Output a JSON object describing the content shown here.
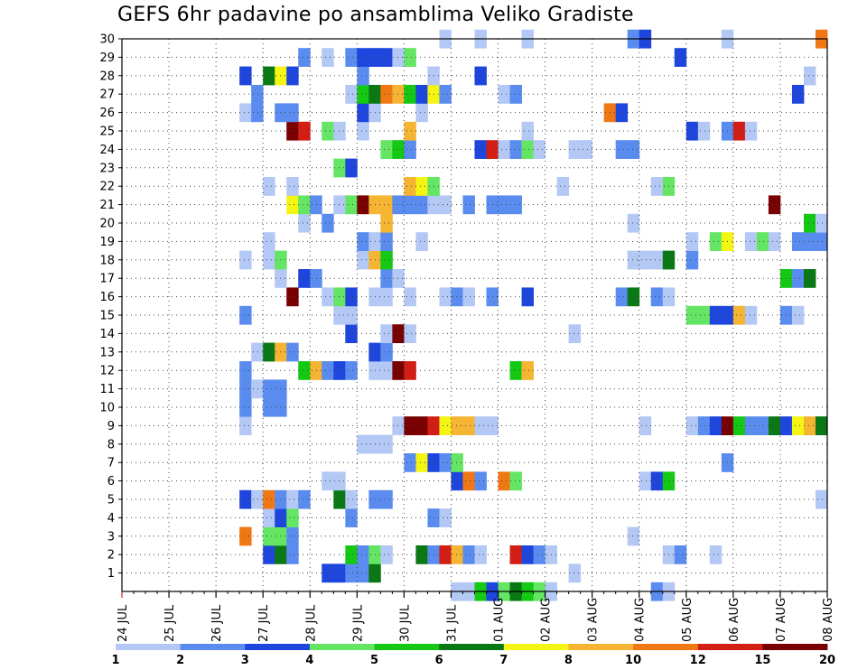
{
  "title": "GEFS 6hr padavine po ansamblima Veliko Gradiste",
  "chart_data": {
    "type": "heatmap",
    "title": "GEFS 6hr padavine po ansamblima Veliko Gradiste",
    "x_tick_labels": [
      "24 JUL",
      "25 JUL",
      "26 JUL",
      "27 JUL",
      "28 JUL",
      "29 JUL",
      "30 JUL",
      "31 JUL",
      "01 AUG",
      "02 AUG",
      "03 AUG",
      "04 AUG",
      "05 AUG",
      "06 AUG",
      "07 AUG",
      "08 AUG"
    ],
    "y_tick_labels": [
      "1",
      "2",
      "3",
      "4",
      "5",
      "6",
      "7",
      "8",
      "9",
      "10",
      "11",
      "12",
      "13",
      "14",
      "15",
      "16",
      "17",
      "18",
      "19",
      "20",
      "21",
      "22",
      "23",
      "24",
      "25",
      "26",
      "27",
      "28",
      "29",
      "30"
    ],
    "xlim": [
      0,
      60
    ],
    "ylim": [
      0,
      30
    ],
    "steps_per_day": 4,
    "grid": true,
    "colorbar": {
      "labels": [
        "1",
        "2",
        "3",
        "4",
        "5",
        "6",
        "7",
        "8",
        "10",
        "12",
        "15",
        "20"
      ],
      "colors": [
        "#b4c8f5",
        "#5a8cf0",
        "#1e46dc",
        "#64e664",
        "#14c814",
        "#0a7814",
        "#f5f514",
        "#f5b432",
        "#f07814",
        "#d21e14",
        "#780000"
      ]
    },
    "cells": [
      [
        28,
        0,
        1
      ],
      [
        29,
        0,
        1
      ],
      [
        30,
        0,
        5
      ],
      [
        31,
        0,
        3
      ],
      [
        32,
        0,
        4
      ],
      [
        33,
        0,
        6
      ],
      [
        34,
        0,
        5
      ],
      [
        35,
        0,
        4
      ],
      [
        36,
        0,
        1
      ],
      [
        45,
        0,
        2
      ],
      [
        46,
        0,
        1
      ],
      [
        17,
        1,
        3
      ],
      [
        18,
        1,
        3
      ],
      [
        19,
        1,
        2
      ],
      [
        20,
        1,
        2
      ],
      [
        21,
        1,
        6
      ],
      [
        38,
        1,
        1
      ],
      [
        12,
        2,
        3
      ],
      [
        13,
        2,
        6
      ],
      [
        14,
        2,
        2
      ],
      [
        19,
        2,
        5
      ],
      [
        20,
        2,
        2
      ],
      [
        21,
        2,
        4
      ],
      [
        22,
        2,
        1
      ],
      [
        25,
        2,
        6
      ],
      [
        26,
        2,
        2
      ],
      [
        27,
        2,
        10
      ],
      [
        28,
        2,
        8
      ],
      [
        29,
        2,
        2
      ],
      [
        30,
        2,
        1
      ],
      [
        33,
        2,
        10
      ],
      [
        34,
        2,
        3
      ],
      [
        35,
        2,
        2
      ],
      [
        36,
        2,
        1
      ],
      [
        46,
        2,
        1
      ],
      [
        47,
        2,
        2
      ],
      [
        50,
        2,
        1
      ],
      [
        10,
        3,
        9
      ],
      [
        12,
        3,
        4
      ],
      [
        13,
        3,
        4
      ],
      [
        14,
        3,
        2
      ],
      [
        43,
        3,
        1
      ],
      [
        12,
        4,
        1
      ],
      [
        13,
        4,
        3
      ],
      [
        14,
        4,
        4
      ],
      [
        19,
        4,
        2
      ],
      [
        26,
        4,
        2
      ],
      [
        27,
        4,
        1
      ],
      [
        10,
        5,
        3
      ],
      [
        11,
        5,
        1
      ],
      [
        12,
        5,
        9
      ],
      [
        13,
        5,
        2
      ],
      [
        14,
        5,
        1
      ],
      [
        15,
        5,
        2
      ],
      [
        18,
        5,
        6
      ],
      [
        19,
        5,
        1
      ],
      [
        21,
        5,
        2
      ],
      [
        22,
        5,
        2
      ],
      [
        59,
        5,
        1
      ],
      [
        17,
        6,
        1
      ],
      [
        18,
        6,
        1
      ],
      [
        28,
        6,
        3
      ],
      [
        29,
        6,
        9
      ],
      [
        30,
        6,
        2
      ],
      [
        32,
        6,
        9
      ],
      [
        33,
        6,
        4
      ],
      [
        44,
        6,
        1
      ],
      [
        45,
        6,
        3
      ],
      [
        46,
        6,
        5
      ],
      [
        24,
        7,
        2
      ],
      [
        25,
        7,
        7
      ],
      [
        26,
        7,
        3
      ],
      [
        27,
        7,
        2
      ],
      [
        28,
        7,
        4
      ],
      [
        51,
        7,
        2
      ],
      [
        20,
        8,
        1
      ],
      [
        21,
        8,
        1
      ],
      [
        22,
        8,
        1
      ],
      [
        10,
        9,
        1
      ],
      [
        23,
        9,
        1
      ],
      [
        24,
        9,
        11
      ],
      [
        25,
        9,
        11
      ],
      [
        26,
        9,
        10
      ],
      [
        27,
        9,
        7
      ],
      [
        28,
        9,
        8
      ],
      [
        29,
        9,
        8
      ],
      [
        30,
        9,
        1
      ],
      [
        31,
        9,
        1
      ],
      [
        44,
        9,
        1
      ],
      [
        48,
        9,
        1
      ],
      [
        49,
        9,
        2
      ],
      [
        50,
        9,
        3
      ],
      [
        51,
        9,
        11
      ],
      [
        52,
        9,
        5
      ],
      [
        53,
        9,
        2
      ],
      [
        54,
        9,
        2
      ],
      [
        55,
        9,
        6
      ],
      [
        56,
        9,
        3
      ],
      [
        57,
        9,
        7
      ],
      [
        58,
        9,
        8
      ],
      [
        59,
        9,
        6
      ],
      [
        10,
        10,
        2
      ],
      [
        12,
        10,
        2
      ],
      [
        13,
        10,
        2
      ],
      [
        10,
        11,
        2
      ],
      [
        11,
        11,
        1
      ],
      [
        12,
        11,
        2
      ],
      [
        13,
        11,
        2
      ],
      [
        10,
        12,
        2
      ],
      [
        15,
        12,
        5
      ],
      [
        16,
        12,
        8
      ],
      [
        17,
        12,
        2
      ],
      [
        18,
        12,
        3
      ],
      [
        19,
        12,
        2
      ],
      [
        21,
        12,
        1
      ],
      [
        22,
        12,
        1
      ],
      [
        23,
        12,
        11
      ],
      [
        24,
        12,
        10
      ],
      [
        33,
        12,
        5
      ],
      [
        34,
        12,
        8
      ],
      [
        11,
        13,
        1
      ],
      [
        12,
        13,
        6
      ],
      [
        13,
        13,
        8
      ],
      [
        14,
        13,
        2
      ],
      [
        21,
        13,
        3
      ],
      [
        22,
        13,
        2
      ],
      [
        19,
        14,
        3
      ],
      [
        22,
        14,
        1
      ],
      [
        23,
        14,
        11
      ],
      [
        24,
        14,
        1
      ],
      [
        38,
        14,
        1
      ],
      [
        10,
        15,
        2
      ],
      [
        18,
        15,
        1
      ],
      [
        19,
        15,
        1
      ],
      [
        48,
        15,
        4
      ],
      [
        49,
        15,
        4
      ],
      [
        50,
        15,
        3
      ],
      [
        51,
        15,
        3
      ],
      [
        52,
        15,
        8
      ],
      [
        53,
        15,
        1
      ],
      [
        56,
        15,
        2
      ],
      [
        57,
        15,
        1
      ],
      [
        14,
        16,
        11
      ],
      [
        17,
        16,
        1
      ],
      [
        18,
        16,
        4
      ],
      [
        19,
        16,
        3
      ],
      [
        21,
        16,
        1
      ],
      [
        22,
        16,
        1
      ],
      [
        24,
        16,
        1
      ],
      [
        27,
        16,
        1
      ],
      [
        28,
        16,
        2
      ],
      [
        29,
        16,
        1
      ],
      [
        31,
        16,
        2
      ],
      [
        34,
        16,
        3
      ],
      [
        42,
        16,
        2
      ],
      [
        43,
        16,
        6
      ],
      [
        45,
        16,
        2
      ],
      [
        46,
        16,
        1
      ],
      [
        13,
        17,
        1
      ],
      [
        15,
        17,
        3
      ],
      [
        16,
        17,
        2
      ],
      [
        22,
        17,
        2
      ],
      [
        23,
        17,
        1
      ],
      [
        56,
        17,
        5
      ],
      [
        57,
        17,
        2
      ],
      [
        58,
        17,
        6
      ],
      [
        10,
        18,
        1
      ],
      [
        12,
        18,
        1
      ],
      [
        13,
        18,
        4
      ],
      [
        20,
        18,
        1
      ],
      [
        21,
        18,
        8
      ],
      [
        22,
        18,
        5
      ],
      [
        43,
        18,
        1
      ],
      [
        44,
        18,
        1
      ],
      [
        45,
        18,
        1
      ],
      [
        46,
        18,
        6
      ],
      [
        48,
        18,
        2
      ],
      [
        12,
        19,
        1
      ],
      [
        20,
        19,
        2
      ],
      [
        21,
        19,
        1
      ],
      [
        22,
        19,
        2
      ],
      [
        25,
        19,
        1
      ],
      [
        48,
        19,
        1
      ],
      [
        50,
        19,
        4
      ],
      [
        51,
        19,
        7
      ],
      [
        53,
        19,
        1
      ],
      [
        54,
        19,
        4
      ],
      [
        55,
        19,
        1
      ],
      [
        57,
        19,
        2
      ],
      [
        58,
        19,
        2
      ],
      [
        59,
        19,
        2
      ],
      [
        15,
        20,
        1
      ],
      [
        17,
        20,
        2
      ],
      [
        22,
        20,
        8
      ],
      [
        43,
        20,
        1
      ],
      [
        58,
        20,
        5
      ],
      [
        59,
        20,
        1
      ],
      [
        14,
        21,
        7
      ],
      [
        15,
        21,
        4
      ],
      [
        16,
        21,
        2
      ],
      [
        18,
        21,
        1
      ],
      [
        19,
        21,
        4
      ],
      [
        20,
        21,
        11
      ],
      [
        21,
        21,
        8
      ],
      [
        22,
        21,
        8
      ],
      [
        23,
        21,
        2
      ],
      [
        24,
        21,
        2
      ],
      [
        25,
        21,
        2
      ],
      [
        26,
        21,
        1
      ],
      [
        27,
        21,
        1
      ],
      [
        29,
        21,
        2
      ],
      [
        31,
        21,
        2
      ],
      [
        32,
        21,
        2
      ],
      [
        33,
        21,
        2
      ],
      [
        55,
        21,
        11
      ],
      [
        12,
        22,
        1
      ],
      [
        14,
        22,
        1
      ],
      [
        24,
        22,
        8
      ],
      [
        25,
        22,
        7
      ],
      [
        26,
        22,
        4
      ],
      [
        37,
        22,
        1
      ],
      [
        45,
        22,
        1
      ],
      [
        46,
        22,
        4
      ],
      [
        18,
        23,
        4
      ],
      [
        19,
        23,
        3
      ],
      [
        22,
        24,
        4
      ],
      [
        23,
        24,
        5
      ],
      [
        24,
        24,
        2
      ],
      [
        30,
        24,
        3
      ],
      [
        31,
        24,
        10
      ],
      [
        32,
        24,
        1
      ],
      [
        33,
        24,
        2
      ],
      [
        34,
        24,
        4
      ],
      [
        35,
        24,
        1
      ],
      [
        38,
        24,
        1
      ],
      [
        39,
        24,
        1
      ],
      [
        42,
        24,
        2
      ],
      [
        43,
        24,
        2
      ],
      [
        14,
        25,
        11
      ],
      [
        15,
        25,
        10
      ],
      [
        17,
        25,
        4
      ],
      [
        18,
        25,
        1
      ],
      [
        20,
        25,
        1
      ],
      [
        24,
        25,
        8
      ],
      [
        34,
        25,
        1
      ],
      [
        48,
        25,
        3
      ],
      [
        49,
        25,
        1
      ],
      [
        51,
        25,
        2
      ],
      [
        52,
        25,
        10
      ],
      [
        53,
        25,
        1
      ],
      [
        10,
        26,
        1
      ],
      [
        11,
        26,
        2
      ],
      [
        13,
        26,
        2
      ],
      [
        14,
        26,
        2
      ],
      [
        20,
        26,
        3
      ],
      [
        21,
        26,
        1
      ],
      [
        25,
        26,
        1
      ],
      [
        41,
        26,
        9
      ],
      [
        42,
        26,
        3
      ],
      [
        11,
        27,
        2
      ],
      [
        19,
        27,
        1
      ],
      [
        20,
        27,
        5
      ],
      [
        21,
        27,
        6
      ],
      [
        22,
        27,
        9
      ],
      [
        23,
        27,
        8
      ],
      [
        24,
        27,
        5
      ],
      [
        25,
        27,
        3
      ],
      [
        26,
        27,
        7
      ],
      [
        27,
        27,
        2
      ],
      [
        32,
        27,
        1
      ],
      [
        33,
        27,
        2
      ],
      [
        57,
        27,
        3
      ],
      [
        10,
        28,
        3
      ],
      [
        12,
        28,
        6
      ],
      [
        13,
        28,
        7
      ],
      [
        14,
        28,
        3
      ],
      [
        20,
        28,
        2
      ],
      [
        26,
        28,
        1
      ],
      [
        30,
        28,
        3
      ],
      [
        58,
        28,
        1
      ],
      [
        15,
        29,
        2
      ],
      [
        17,
        29,
        1
      ],
      [
        19,
        29,
        2
      ],
      [
        20,
        29,
        3
      ],
      [
        21,
        29,
        3
      ],
      [
        22,
        29,
        3
      ],
      [
        23,
        29,
        1
      ],
      [
        24,
        29,
        4
      ],
      [
        47,
        29,
        3
      ],
      [
        27,
        30,
        1
      ],
      [
        30,
        30,
        1
      ],
      [
        34,
        30,
        1
      ],
      [
        43,
        30,
        2
      ],
      [
        44,
        30,
        3
      ],
      [
        51,
        30,
        1
      ],
      [
        59,
        30,
        9
      ]
    ]
  }
}
